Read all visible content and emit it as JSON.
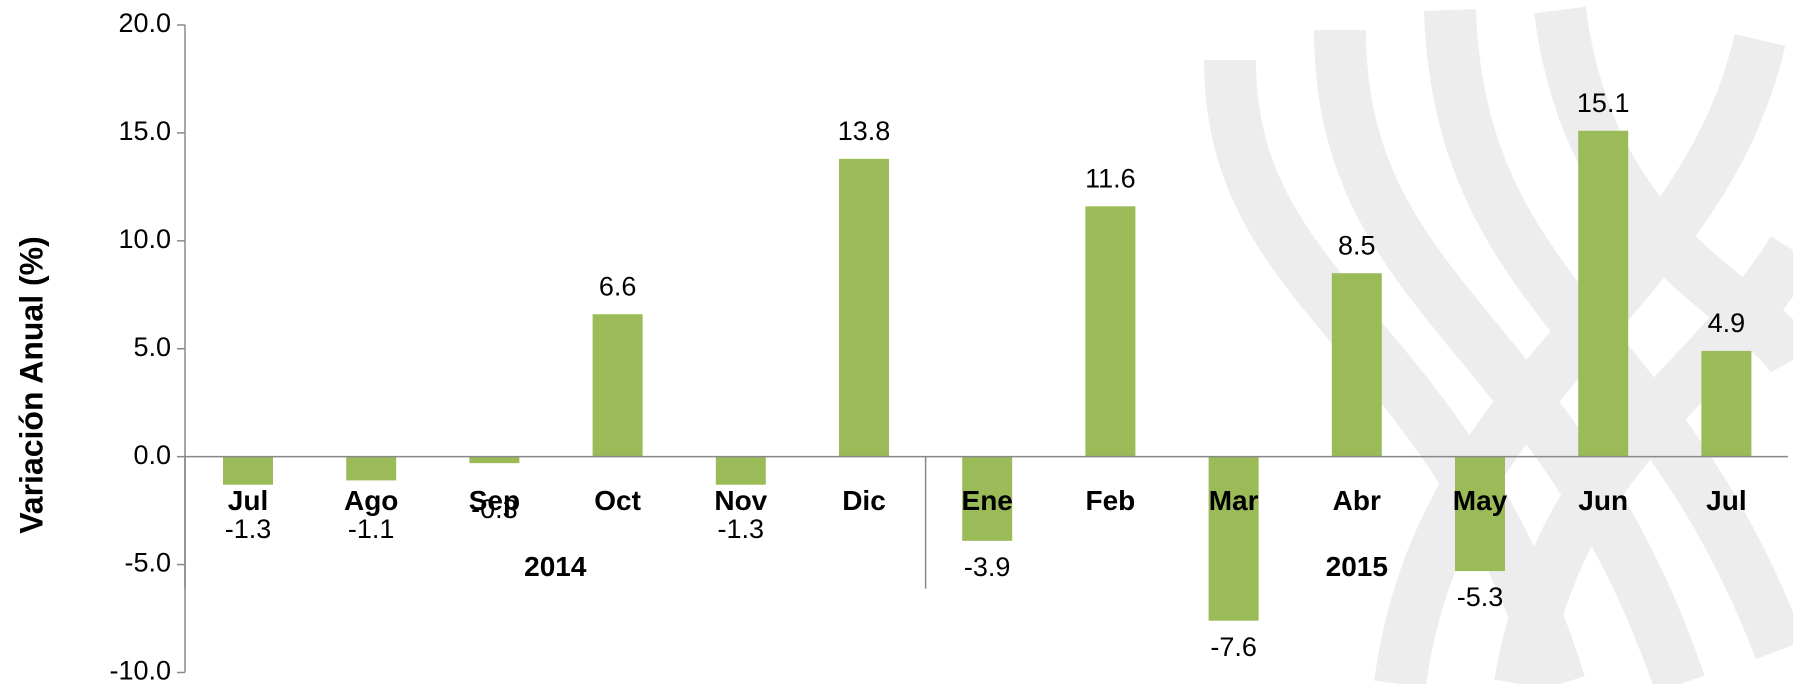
{
  "chart_data": {
    "type": "bar",
    "ylabel": "Variación  Anual  (%)",
    "groups": [
      {
        "name": "2014",
        "categories": [
          "Jul",
          "Ago",
          "Sep",
          "Oct",
          "Nov",
          "Dic"
        ]
      },
      {
        "name": "2015",
        "categories": [
          "Ene",
          "Feb",
          "Mar",
          "Abr",
          "May",
          "Jun",
          "Jul"
        ]
      }
    ],
    "values": [
      -1.3,
      -1.1,
      -0.3,
      6.6,
      -1.3,
      13.8,
      -3.9,
      11.6,
      -7.6,
      8.5,
      -5.3,
      15.1,
      4.9
    ],
    "color": "#9bbb59",
    "ylim": [
      -10,
      20
    ],
    "yticks": [
      {
        "value": -10,
        "label": "-10.0"
      },
      {
        "value": -5,
        "label": "-5.0"
      },
      {
        "value": 0,
        "label": "0.0"
      },
      {
        "value": 5,
        "label": "5.0"
      },
      {
        "value": 10,
        "label": "10.0"
      },
      {
        "value": 15,
        "label": "15.0"
      },
      {
        "value": 20,
        "label": "20.0"
      }
    ]
  }
}
